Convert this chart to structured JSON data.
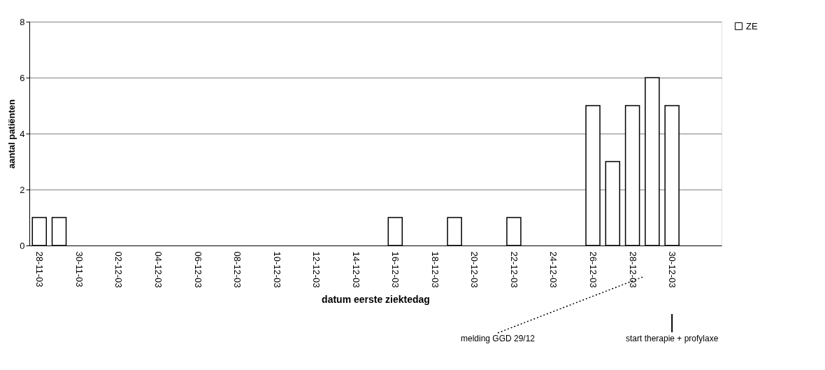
{
  "chart_data": {
    "type": "bar",
    "xlabel": "datum eerste ziektedag",
    "ylabel": "aantal patiënten",
    "categories": [
      "28-11-03",
      null,
      "30-11-03",
      null,
      "02-12-03",
      null,
      "04-12-03",
      null,
      "06-12-03",
      null,
      "08-12-03",
      null,
      "10-12-03",
      null,
      "12-12-03",
      null,
      "14-12-03",
      null,
      "16-12-03",
      null,
      "18-12-03",
      null,
      "20-12-03",
      null,
      "22-12-03",
      null,
      "24-12-03",
      null,
      "26-12-03",
      null,
      "28-12-03",
      null,
      "30-12-03",
      null,
      null
    ],
    "series": [
      {
        "name": "ZE",
        "color": "#ffffff",
        "values": [
          1,
          1,
          null,
          null,
          null,
          null,
          null,
          null,
          null,
          null,
          null,
          null,
          null,
          null,
          null,
          null,
          null,
          null,
          1,
          null,
          null,
          1,
          null,
          null,
          1,
          null,
          null,
          null,
          5,
          3,
          5,
          6,
          5,
          null,
          null
        ]
      }
    ],
    "ylim": [
      0,
      8
    ],
    "yticks": [
      0,
      2,
      4,
      6,
      8
    ],
    "grid": "y",
    "legend": "right",
    "annotations": [
      "melding GGD 29/12",
      {
        "text": "start therapie + profylaxe",
        "x": "30-12-03"
      }
    ]
  }
}
